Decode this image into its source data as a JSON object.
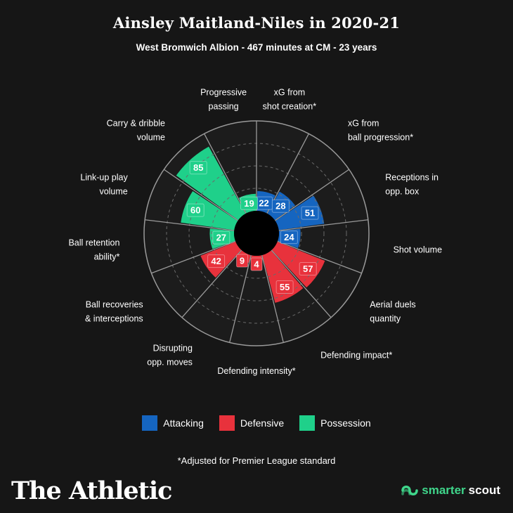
{
  "header": {
    "title": "Ainsley Maitland-Niles in 2020-21",
    "subtitle": "West Bromwich Albion - 467 minutes at CM - 23 years"
  },
  "chart_data": {
    "type": "polar_bar",
    "title": "Ainsley Maitland-Niles in 2020-21",
    "subtitle": "West Bromwich Albion - 467 minutes at CM - 23 years",
    "rlim": [
      0,
      100
    ],
    "grid": true,
    "legend_placement": "bottom",
    "categories": [
      {
        "label": "xG from\nshot creation*",
        "value": 22,
        "group": "Attacking"
      },
      {
        "label": "xG from\nball progression*",
        "value": 28,
        "group": "Attacking"
      },
      {
        "label": "Receptions in\nopp. box",
        "value": 51,
        "group": "Attacking"
      },
      {
        "label": "Shot volume",
        "value": 24,
        "group": "Attacking"
      },
      {
        "label": "Aerial duels\nquantity",
        "value": 57,
        "group": "Defensive"
      },
      {
        "label": "Defending impact*",
        "value": 55,
        "group": "Defensive"
      },
      {
        "label": "Defending intensity*",
        "value": 4,
        "group": "Defensive"
      },
      {
        "label": "Disrupting\nopp. moves",
        "value": 9,
        "group": "Defensive"
      },
      {
        "label": "Ball recoveries\n& interceptions",
        "value": 42,
        "group": "Defensive"
      },
      {
        "label": "Ball retention\nability*",
        "value": 27,
        "group": "Possession"
      },
      {
        "label": "Link-up play\nvolume",
        "value": 60,
        "group": "Possession"
      },
      {
        "label": "Carry & dribble\nvolume",
        "value": 85,
        "group": "Possession"
      },
      {
        "label": "Progressive\npassing",
        "value": 19,
        "group": "Possession"
      }
    ],
    "groups": [
      {
        "name": "Attacking",
        "color": "#1565c0"
      },
      {
        "name": "Defensive",
        "color": "#e8323c"
      },
      {
        "name": "Possession",
        "color": "#1fd08a"
      }
    ]
  },
  "legend": {
    "items": [
      {
        "label": "Attacking",
        "color": "#1565c0"
      },
      {
        "label": "Defensive",
        "color": "#e8323c"
      },
      {
        "label": "Possession",
        "color": "#1fd08a"
      }
    ]
  },
  "footnote": "*Adjusted for Premier League standard",
  "footer": {
    "brand": "The Athletic",
    "scout_prefix": "smarter",
    "scout_suffix": "scout",
    "scout_icon": "smarterscout-logo-icon"
  }
}
